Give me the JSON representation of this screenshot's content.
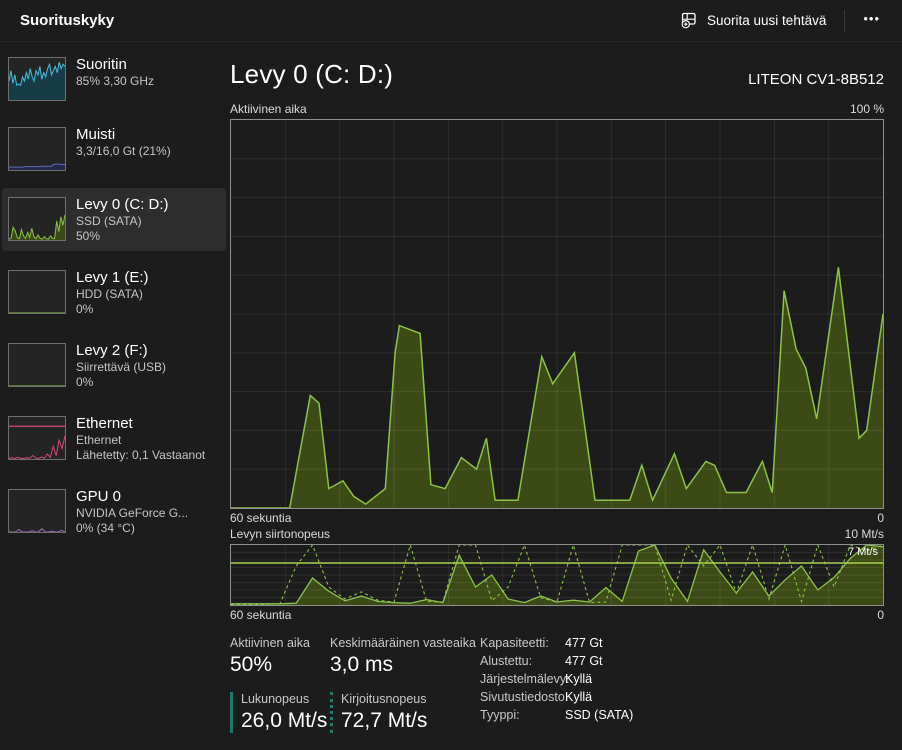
{
  "titlebar": {
    "title": "Suorituskyky",
    "run_new_task_label": "Suorita uusi tehtävä",
    "more_label": "•••"
  },
  "sidebar": {
    "items": [
      {
        "title": "Suoritin",
        "line2": "85%  3,30 GHz",
        "line3": "",
        "spark": {
          "color": "#45c1e0",
          "fill": "#173b47",
          "values": [
            45,
            70,
            40,
            60,
            35,
            38,
            35,
            55,
            45,
            65,
            50,
            75,
            55,
            45,
            70,
            60,
            80,
            50,
            65,
            55,
            75,
            85,
            60,
            70,
            80,
            65,
            90,
            75,
            85,
            80
          ]
        }
      },
      {
        "title": "Muisti",
        "line2": "3,3/16,0 Gt (21%)",
        "line3": "",
        "spark": {
          "color": "#5b6dbe",
          "fill": "#23284a",
          "values": [
            7,
            7,
            7,
            7,
            7,
            7,
            7,
            7,
            8,
            8,
            8,
            8,
            8,
            8,
            8,
            8,
            8,
            9,
            9,
            9,
            9,
            9,
            9,
            13,
            14,
            14,
            14,
            13,
            13,
            13
          ]
        }
      },
      {
        "title": "Levy 0 (C: D:)",
        "line2": "SSD (SATA)",
        "line3": "50%",
        "spark": {
          "color": "#8bc34a",
          "fill": "#3c4b15",
          "values": [
            2,
            5,
            30,
            22,
            6,
            3,
            25,
            10,
            4,
            18,
            6,
            28,
            8,
            3,
            12,
            4,
            2,
            8,
            3,
            2,
            10,
            4,
            3,
            45,
            20,
            55,
            35,
            60
          ]
        }
      },
      {
        "title": "Levy 1 (E:)",
        "line2": "HDD (SATA)",
        "line3": "0%",
        "spark": {
          "color": "#8bc34a",
          "fill": "none",
          "values": [
            0,
            0,
            0,
            0
          ]
        }
      },
      {
        "title": "Levy 2 (F:)",
        "line2": "Siirrettävä (USB)",
        "line3": "0%",
        "spark": {
          "color": "#8bc34a",
          "fill": "none",
          "values": [
            0,
            0,
            0,
            0
          ]
        }
      },
      {
        "title": "Ethernet",
        "line2": "Ethernet",
        "line3": "Lähetetty: 0,1 Vastaanot",
        "spark": {
          "color": "#d9467e",
          "fill": "none",
          "const_line": 78,
          "values": [
            2,
            3,
            1,
            4,
            2,
            1,
            3,
            2,
            8,
            3,
            1,
            5,
            2,
            12,
            4,
            30,
            8,
            45,
            25,
            55
          ]
        }
      },
      {
        "title": "GPU 0",
        "line2": "NVIDIA GeForce G...",
        "line3": "0%  (34 °C)",
        "spark": {
          "color": "#a06bc2",
          "fill": "none",
          "values": [
            0,
            0,
            0,
            6,
            0,
            0,
            0,
            3,
            0,
            0,
            8,
            0,
            0,
            2,
            0,
            0,
            4,
            0
          ]
        }
      }
    ]
  },
  "main": {
    "title": "Levy 0 (C: D:)",
    "device": "LITEON CV1-8B512",
    "chart1": {
      "label": "Aktiivinen aika",
      "max_label": "100 %",
      "x_left": "60 sekuntia",
      "x_right": "0"
    },
    "chart2": {
      "label": "Levyn siirtonopeus",
      "max_label": "10 Mt/s",
      "marker_label": "7 Mt/s",
      "x_left": "60 sekuntia",
      "x_right": "0"
    },
    "stats": {
      "active_time": {
        "label": "Aktiivinen aika",
        "value": "50%"
      },
      "avg_response": {
        "label": "Keskimääräinen vasteaika",
        "value": "3,0 ms"
      },
      "read_speed": {
        "label": "Lukunopeus",
        "value": "26,0 Mt/s",
        "marker_color": "#1f7a6e"
      },
      "write_speed": {
        "label": "Kirjoitusnopeus",
        "value": "72,7 Mt/s",
        "marker_color": "#1f7a6e"
      },
      "details": [
        {
          "label": "Kapasiteetti:",
          "value": "477 Gt"
        },
        {
          "label": "Alustettu:",
          "value": "477 Gt"
        },
        {
          "label": "Järjestelmälevy:",
          "value": "Kyllä"
        },
        {
          "label": "Sivutustiedosto:",
          "value": "Kyllä"
        },
        {
          "label": "Tyyppi:",
          "value": "SSD (SATA)"
        }
      ]
    }
  },
  "colors": {
    "background": "#1c1c1c",
    "selected_item": "#2d2d2d",
    "disk_line": "#8bc34a",
    "disk_fill": "#3c4b15",
    "marker_line": "#a8d34f",
    "legend_teal": "#1f7a6e",
    "chart_border": "#8f8f8f"
  },
  "chart_data": [
    {
      "id": "active_time",
      "type": "area",
      "title": "Aktiivinen aika",
      "ylabel": "%",
      "ylim": [
        0,
        100
      ],
      "xlabel": "sekuntia (60 -> 0)",
      "xlim_seconds_ago": [
        60,
        0
      ],
      "grid": {
        "columns": 12,
        "rows": 10
      },
      "line_color": "#8bc34a",
      "fill_color": "#3c4b15",
      "x_seconds_ago": [
        60,
        54.6,
        52.7,
        51.9,
        51,
        49.7,
        48.7,
        47.6,
        45.8,
        44.9,
        44.5,
        42.6,
        41.6,
        40.3,
        38.8,
        37.4,
        36.5,
        35.7,
        33.6,
        31.4,
        30.4,
        28.4,
        27.4,
        26.5,
        23.3,
        22.2,
        21.2,
        19.2,
        18.1,
        16.3,
        15.5,
        14.4,
        12.6,
        11.1,
        10.2,
        9.1,
        8,
        7.1,
        6.1,
        4.1,
        2.2,
        1.5,
        0
      ],
      "percent": [
        0,
        0,
        29,
        27,
        5,
        7,
        3,
        1,
        5,
        40,
        47,
        45,
        6,
        5,
        13,
        10,
        18,
        2,
        2,
        39,
        32,
        40,
        20,
        2,
        2,
        11,
        2,
        14,
        5,
        12,
        11,
        4,
        4,
        12,
        4,
        56,
        41,
        36,
        23,
        62,
        18,
        20,
        50
      ]
    },
    {
      "id": "transfer_rate",
      "type": "area+line",
      "title": "Levyn siirtonopeus",
      "unit": "Mt/s",
      "ylim": [
        0,
        10
      ],
      "marker_value": 7,
      "grid": {
        "columns": 12,
        "rows": 8
      },
      "line_color": "#8bc34a",
      "fill_color": "#3c4b15",
      "marker_color": "#a8d34f",
      "xlim_seconds_ago": [
        60,
        0
      ],
      "series": [
        {
          "name": "kirjoitusnopeus",
          "style": "solid-fill",
          "values": [
            0.2,
            0.2,
            0.2,
            0.2,
            0.3,
            4.5,
            2.3,
            0.7,
            1.5,
            0.6,
            0.4,
            0.3,
            0.9,
            0.4,
            8.3,
            3.0,
            5.0,
            1.0,
            0.4,
            1.5,
            0.5,
            0.8,
            0.5,
            2.9,
            0.6,
            9.0,
            10,
            4.5,
            0.6,
            9.2,
            5.5,
            2.0,
            5.5,
            1.5,
            4.2,
            6.5,
            2.5,
            4.6,
            7.8,
            10,
            9.7
          ]
        },
        {
          "name": "lukunopeus",
          "style": "dashed",
          "values": [
            0.1,
            0.1,
            0.1,
            0.2,
            6.5,
            10,
            3.0,
            1.0,
            2.2,
            0.8,
            0.5,
            10,
            0.6,
            0.5,
            10,
            10,
            0.7,
            3.0,
            10,
            1.2,
            0.5,
            10,
            0.4,
            0.5,
            10,
            10,
            10,
            0.8,
            10,
            6.5,
            10,
            2.0,
            10,
            1.0,
            10,
            0.6,
            10,
            3.0,
            10,
            9.0,
            10
          ]
        }
      ]
    }
  ]
}
